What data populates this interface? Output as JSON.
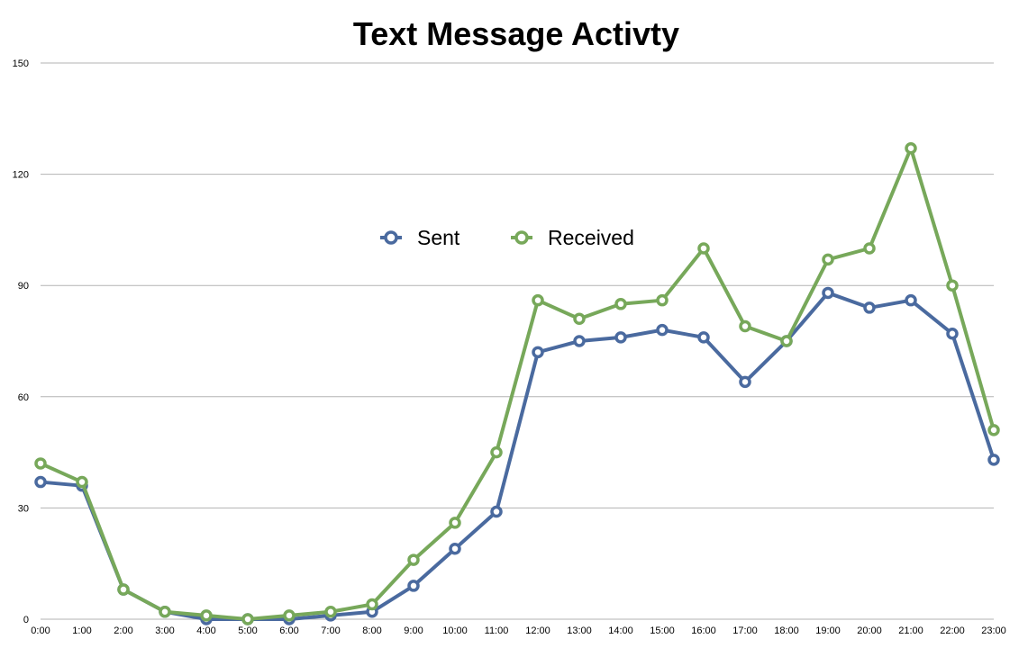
{
  "chart_data": {
    "type": "line",
    "title": "Text Message Activty",
    "categories": [
      "0:00",
      "1:00",
      "2:00",
      "3:00",
      "4:00",
      "5:00",
      "6:00",
      "7:00",
      "8:00",
      "9:00",
      "10:00",
      "11:00",
      "12:00",
      "13:00",
      "14:00",
      "15:00",
      "16:00",
      "17:00",
      "18:00",
      "19:00",
      "20:00",
      "21:00",
      "22:00",
      "23:00"
    ],
    "series": [
      {
        "name": "Sent",
        "color": "#4a6a9f",
        "values": [
          37,
          36,
          8,
          2,
          0,
          0,
          0,
          1,
          2,
          9,
          19,
          29,
          72,
          75,
          76,
          78,
          76,
          64,
          75,
          88,
          84,
          86,
          77,
          43
        ]
      },
      {
        "name": "Received",
        "color": "#77a85a",
        "values": [
          42,
          37,
          8,
          2,
          1,
          0,
          1,
          2,
          4,
          16,
          26,
          45,
          86,
          81,
          85,
          86,
          100,
          79,
          75,
          97,
          100,
          127,
          90,
          51
        ]
      }
    ],
    "ylim": [
      0,
      150
    ],
    "yticks": [
      0,
      30,
      60,
      90,
      120,
      150
    ],
    "xlabel": "",
    "ylabel": "",
    "grid": true,
    "legend_position": "top-center"
  }
}
